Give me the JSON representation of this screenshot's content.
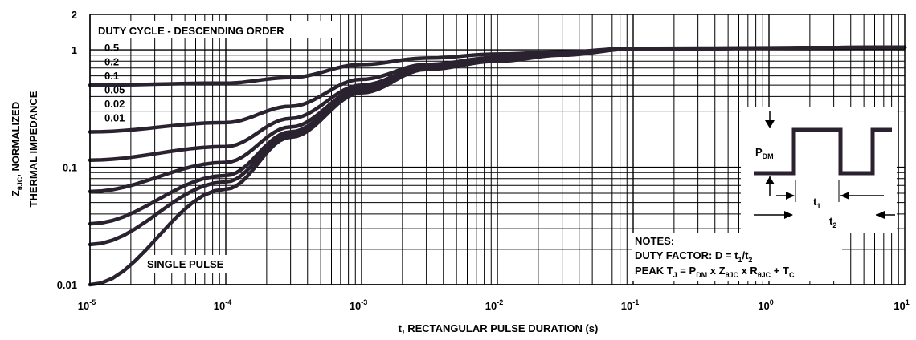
{
  "chart_data": {
    "type": "line",
    "scale": {
      "x": "log",
      "y": "log"
    },
    "xlim": [
      1e-05,
      10
    ],
    "ylim": [
      0.01,
      2
    ],
    "grid": true,
    "xlabel": "t, RECTANGULAR PULSE DURATION (s)",
    "ylabel_parts": [
      "Z",
      "θJC",
      ", NORMALIZED",
      "THERMAL IMPEDANCE"
    ],
    "x_ticks": [
      {
        "base": "10",
        "exp": "-5",
        "value": 1e-05
      },
      {
        "base": "10",
        "exp": "-4",
        "value": 0.0001
      },
      {
        "base": "10",
        "exp": "-3",
        "value": 0.001
      },
      {
        "base": "10",
        "exp": "-2",
        "value": 0.01
      },
      {
        "base": "10",
        "exp": "-1",
        "value": 0.1
      },
      {
        "base": "10",
        "exp": "0",
        "value": 1
      },
      {
        "base": "10",
        "exp": "1",
        "value": 10
      }
    ],
    "y_ticks": [
      {
        "label": "0.01",
        "value": 0.01
      },
      {
        "label": "0.1",
        "value": 0.1
      },
      {
        "label": "1",
        "value": 1
      },
      {
        "label": "2",
        "value": 2
      }
    ],
    "legend_title": "DUTY CYCLE - DESCENDING ORDER",
    "legend_items": [
      "0.5",
      "0.2",
      "0.1",
      "0.05",
      "0.02",
      "0.01"
    ],
    "single_pulse_label": "SINGLE PULSE",
    "series": [
      {
        "name": "0.5",
        "x": [
          1e-05,
          0.0001,
          0.0003,
          0.001,
          0.003,
          0.01,
          0.03,
          0.1,
          10
        ],
        "y": [
          0.5,
          0.52,
          0.58,
          0.75,
          0.85,
          0.92,
          0.96,
          1.03,
          1.05
        ]
      },
      {
        "name": "0.2",
        "x": [
          1e-05,
          0.0001,
          0.0003,
          0.001,
          0.003,
          0.01,
          0.03,
          0.1,
          10
        ],
        "y": [
          0.2,
          0.24,
          0.33,
          0.56,
          0.75,
          0.86,
          0.94,
          1.02,
          1.05
        ]
      },
      {
        "name": "0.1",
        "x": [
          1e-05,
          0.0001,
          0.0003,
          0.001,
          0.003,
          0.01,
          0.03,
          0.1,
          10
        ],
        "y": [
          0.115,
          0.15,
          0.26,
          0.5,
          0.72,
          0.83,
          0.92,
          1.02,
          1.05
        ]
      },
      {
        "name": "0.05",
        "x": [
          1e-05,
          0.0001,
          0.0003,
          0.001,
          0.003,
          0.01,
          0.03,
          0.1,
          10
        ],
        "y": [
          0.062,
          0.11,
          0.22,
          0.47,
          0.7,
          0.82,
          0.91,
          1.02,
          1.05
        ]
      },
      {
        "name": "0.02",
        "x": [
          1e-05,
          0.0001,
          0.0003,
          0.001,
          0.003,
          0.01,
          0.03,
          0.1,
          10
        ],
        "y": [
          0.033,
          0.085,
          0.2,
          0.45,
          0.69,
          0.81,
          0.91,
          1.02,
          1.05
        ]
      },
      {
        "name": "0.01",
        "x": [
          1e-05,
          0.0001,
          0.0003,
          0.001,
          0.003,
          0.01,
          0.03,
          0.1,
          10
        ],
        "y": [
          0.022,
          0.075,
          0.19,
          0.44,
          0.69,
          0.81,
          0.91,
          1.02,
          1.05
        ]
      },
      {
        "name": "SINGLE PULSE",
        "x": [
          1e-05,
          0.0001,
          0.0003,
          0.001,
          0.003,
          0.01,
          0.03,
          0.1,
          10
        ],
        "y": [
          0.01,
          0.065,
          0.18,
          0.43,
          0.68,
          0.8,
          0.9,
          1.02,
          1.05
        ]
      }
    ],
    "inset": {
      "pdm": {
        "base": "P",
        "sub": "DM"
      },
      "t1": {
        "base": "t",
        "sub": "1"
      },
      "t2": {
        "base": "t",
        "sub": "2"
      }
    },
    "notes": {
      "title": "NOTES:",
      "duty_factor": {
        "prefix": "DUTY FACTOR: D = t",
        "s1": "1",
        "mid": "/t",
        "s2": "2"
      },
      "peak": {
        "p1": "PEAK T",
        "s1": "J",
        "p2": " = P",
        "s2": "DM",
        "p3": " x Z",
        "s3": "θJC",
        "p4": " x R",
        "s4": "θJC",
        "p5": " + T",
        "s5": "C"
      }
    }
  }
}
